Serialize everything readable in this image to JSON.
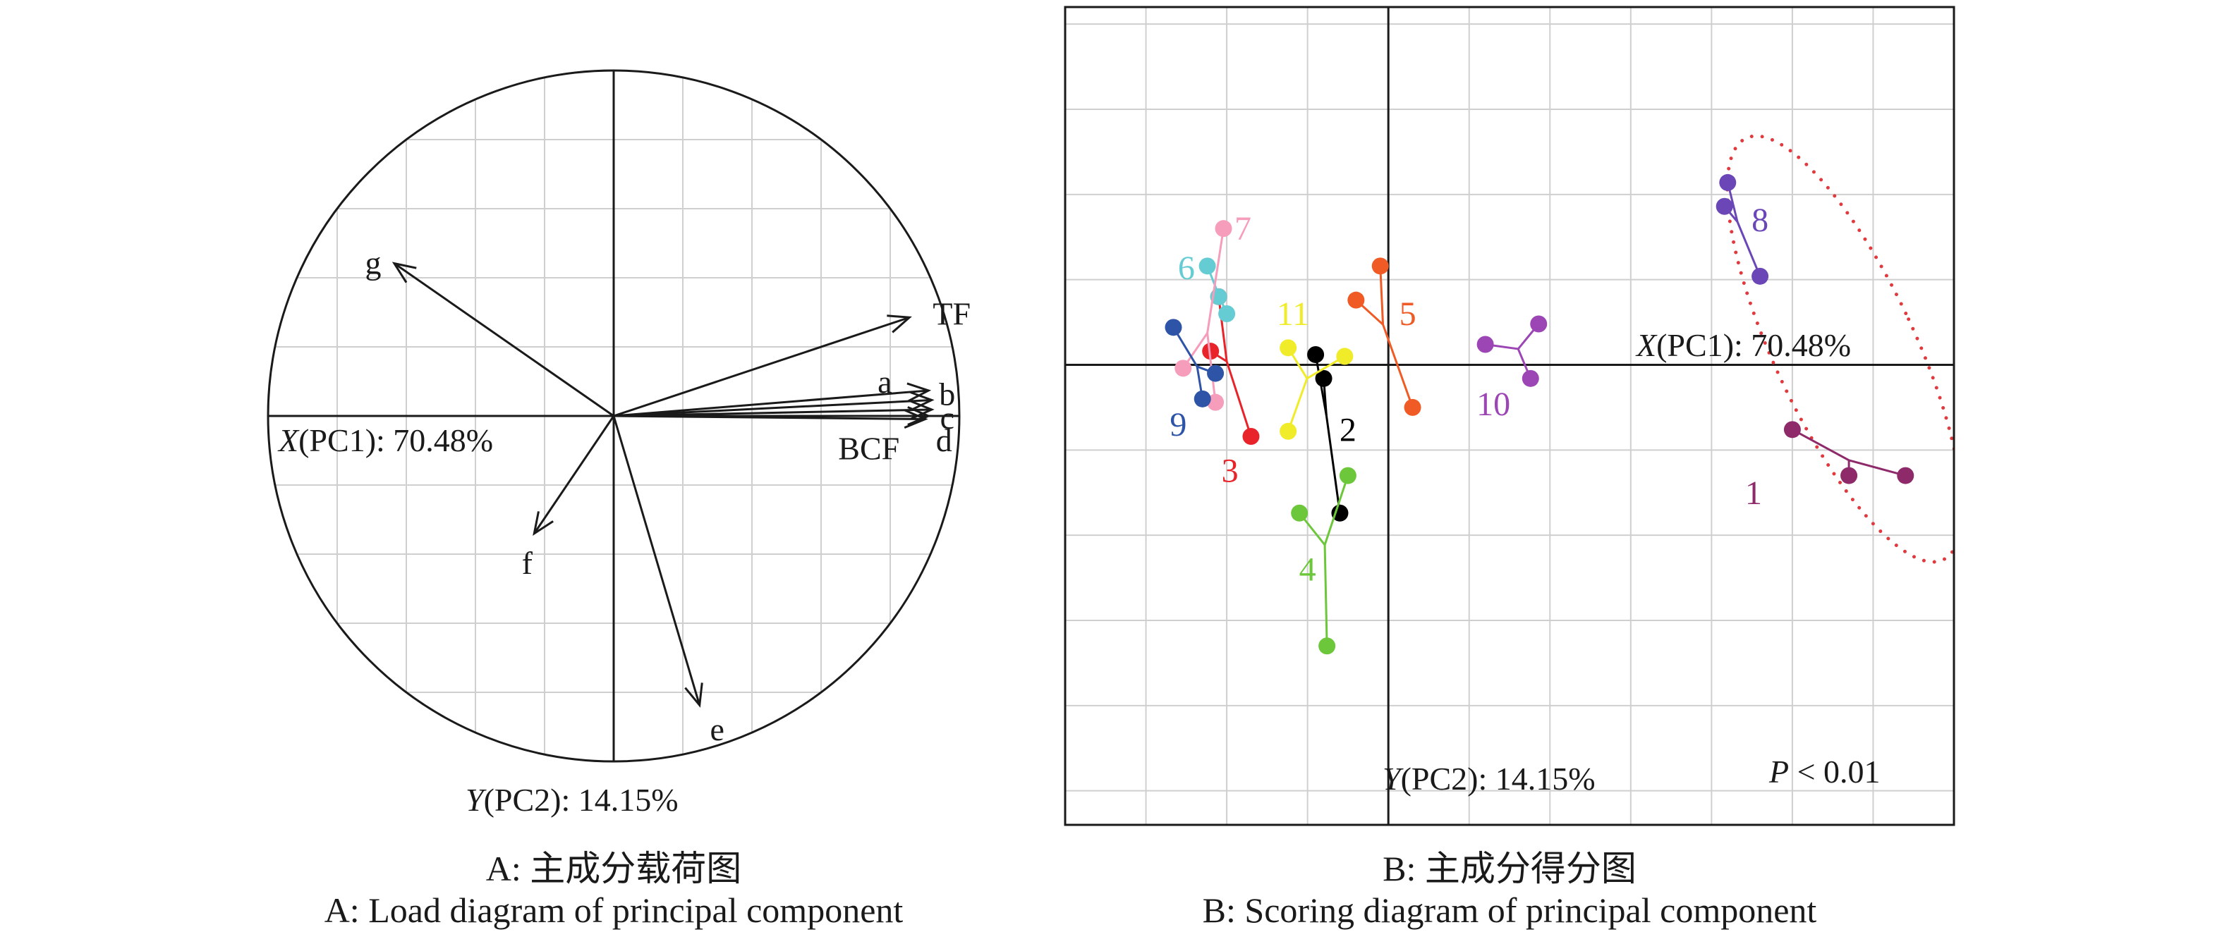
{
  "captions": {
    "a_cn": "A: 主成分载荷图",
    "a_en": "A: Load diagram of principal component",
    "b_cn": "B: 主成分得分图",
    "b_en": "B: Scoring diagram of principal component"
  },
  "chart_data": [
    {
      "type": "scatter",
      "subtype": "pca-loading-biplot",
      "panel": "A",
      "x_axis": {
        "var": "X",
        "name": "(PC1): 70.48%"
      },
      "y_axis": {
        "var": "Y",
        "name": "(PC2): 14.15%"
      },
      "xlim": [
        -1,
        1
      ],
      "ylim": [
        -1,
        1
      ],
      "unit_circle": true,
      "grid": true,
      "loadings": [
        {
          "label": "g",
          "x": -0.69,
          "y": 0.48
        },
        {
          "label": "TF",
          "x": 0.93,
          "y": 0.31
        },
        {
          "label": "a",
          "x": 0.99,
          "y": 0.08
        },
        {
          "label": "b",
          "x": 1.0,
          "y": 0.05
        },
        {
          "label": "c",
          "x": 1.0,
          "y": 0.02
        },
        {
          "label": "d",
          "x": 0.99,
          "y": 0.0
        },
        {
          "label": "BCF",
          "x": 0.98,
          "y": -0.01
        },
        {
          "label": "f",
          "x": -0.25,
          "y": -0.37
        },
        {
          "label": "e",
          "x": 0.27,
          "y": -0.91
        }
      ]
    },
    {
      "type": "scatter",
      "subtype": "pca-score-plot",
      "panel": "B",
      "x_axis": {
        "var": "X",
        "name": "(PC1): 70.48%"
      },
      "y_axis": {
        "var": "Y",
        "name": "(PC2): 14.15%"
      },
      "annotation": {
        "var": "P",
        "text": " < 0.01"
      },
      "xlim": [
        -2,
        3.5
      ],
      "ylim": [
        -2.7,
        2.1
      ],
      "grid": true,
      "ellipse_group": "8, 1",
      "groups": [
        {
          "label": "1",
          "color": "#8e2a6a",
          "points": [
            [
              2.5,
              -0.38
            ],
            [
              2.85,
              -0.65
            ],
            [
              3.2,
              -0.65
            ]
          ]
        },
        {
          "label": "2",
          "color": "#000000",
          "points": [
            [
              -0.45,
              0.06
            ],
            [
              -0.4,
              -0.08
            ],
            [
              -0.3,
              -0.87
            ]
          ]
        },
        {
          "label": "3",
          "color": "#e8242a",
          "points": [
            [
              -1.05,
              0.4
            ],
            [
              -1.1,
              0.08
            ],
            [
              -0.85,
              -0.42
            ]
          ]
        },
        {
          "label": "4",
          "color": "#6cc73a",
          "points": [
            [
              -0.55,
              -0.87
            ],
            [
              -0.25,
              -0.65
            ],
            [
              -0.38,
              -1.65
            ]
          ]
        },
        {
          "label": "5",
          "color": "#f05a24",
          "points": [
            [
              -0.05,
              0.58
            ],
            [
              -0.2,
              0.38
            ],
            [
              0.15,
              -0.25
            ]
          ]
        },
        {
          "label": "6",
          "color": "#66ccd4",
          "points": [
            [
              -1.12,
              0.58
            ],
            [
              -1.0,
              0.3
            ],
            [
              -1.05,
              0.4
            ]
          ]
        },
        {
          "label": "7",
          "color": "#f59dbb",
          "points": [
            [
              -1.02,
              0.8
            ],
            [
              -1.27,
              -0.02
            ],
            [
              -1.07,
              -0.22
            ]
          ]
        },
        {
          "label": "8",
          "color": "#6a46b6",
          "points": [
            [
              2.1,
              1.07
            ],
            [
              2.08,
              0.93
            ],
            [
              2.3,
              0.52
            ]
          ]
        },
        {
          "label": "9",
          "color": "#2e54a8",
          "points": [
            [
              -1.33,
              0.22
            ],
            [
              -1.15,
              -0.2
            ],
            [
              -1.07,
              -0.05
            ]
          ]
        },
        {
          "label": "10",
          "color": "#9b46b4",
          "points": [
            [
              0.6,
              0.12
            ],
            [
              0.93,
              0.24
            ],
            [
              0.88,
              -0.08
            ]
          ]
        },
        {
          "label": "11",
          "color": "#f0ec2a",
          "points": [
            [
              -0.62,
              0.1
            ],
            [
              -0.62,
              -0.39
            ],
            [
              -0.27,
              0.05
            ]
          ]
        }
      ]
    }
  ]
}
